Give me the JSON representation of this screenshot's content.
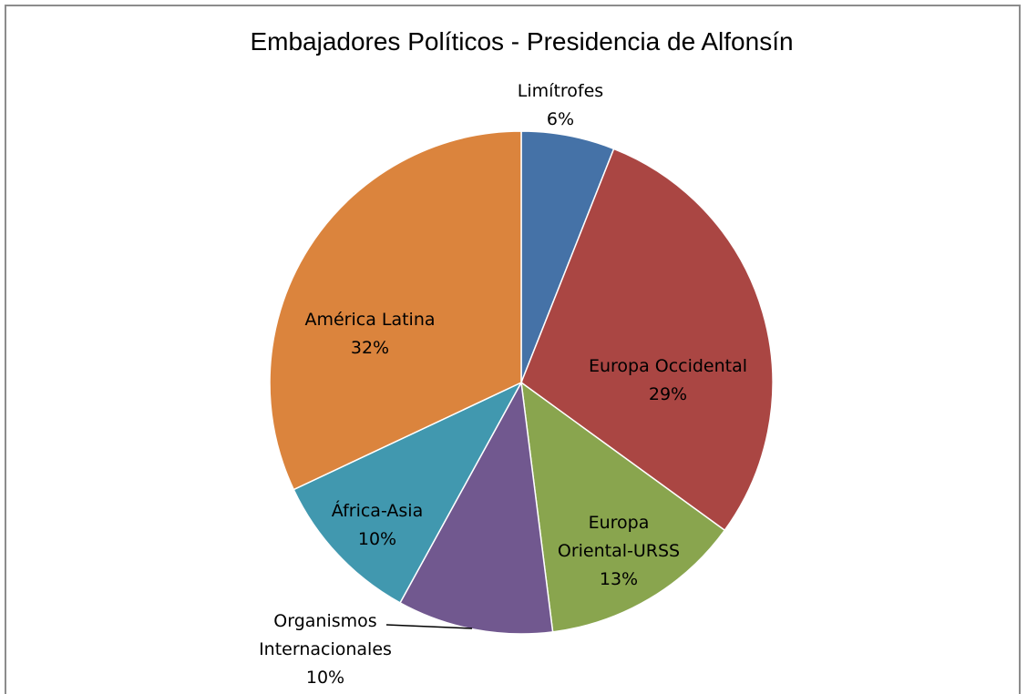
{
  "chart_data": {
    "type": "pie",
    "title": "Embajadores Políticos - Presidencia de Alfonsín",
    "slices": [
      {
        "label": "Limítrofes",
        "value": 6,
        "display": "6%",
        "color": "#4572a7"
      },
      {
        "label": "Europa Occidental",
        "value": 29,
        "display": "29%",
        "color": "#aa4643"
      },
      {
        "label": "Europa Oriental-URSS",
        "value": 13,
        "display": "13%",
        "color": "#89a54e"
      },
      {
        "label": "Organismos Internacionales",
        "value": 10,
        "display": "10%",
        "color": "#71588f"
      },
      {
        "label": "África-Asia",
        "value": 10,
        "display": "10%",
        "color": "#4198af"
      },
      {
        "label": "América Latina",
        "value": 32,
        "display": "32%",
        "color": "#db843d"
      }
    ]
  }
}
